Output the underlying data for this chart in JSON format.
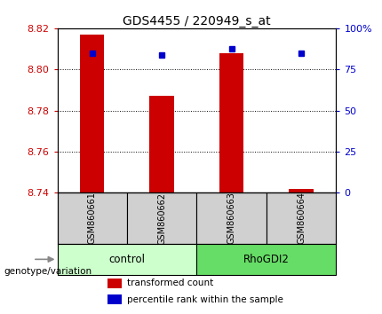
{
  "title": "GDS4455 / 220949_s_at",
  "samples": [
    "GSM860661",
    "GSM860662",
    "GSM860663",
    "GSM860664"
  ],
  "red_values": [
    8.817,
    8.787,
    8.808,
    8.742
  ],
  "blue_values": [
    8.808,
    8.807,
    8.81,
    8.808
  ],
  "y_min": 8.74,
  "y_max": 8.82,
  "y_ticks": [
    8.74,
    8.76,
    8.78,
    8.8,
    8.82
  ],
  "y_tick_labels": [
    "8.74",
    "8.76",
    "8.78",
    "8.80",
    "8.82"
  ],
  "right_y_ticks_pct": [
    0,
    25,
    50,
    75,
    100
  ],
  "right_y_tick_labels": [
    "0",
    "25",
    "50",
    "75",
    "100%"
  ],
  "bar_width": 0.35,
  "bar_bottom": 8.74,
  "red_color": "#cc0000",
  "blue_color": "#0000cc",
  "left_tick_color": "#cc0000",
  "right_tick_color": "#0000cc",
  "legend_red": "transformed count",
  "legend_blue": "percentile rank within the sample",
  "genotype_label": "genotype/variation",
  "control_label": "control",
  "rhogdi2_label": "RhoGDI2",
  "sample_box_color": "#d0d0d0",
  "control_color": "#ccffcc",
  "rhogdi2_color": "#66dd66",
  "title_fontsize": 10,
  "tick_fontsize": 8,
  "label_fontsize": 8
}
